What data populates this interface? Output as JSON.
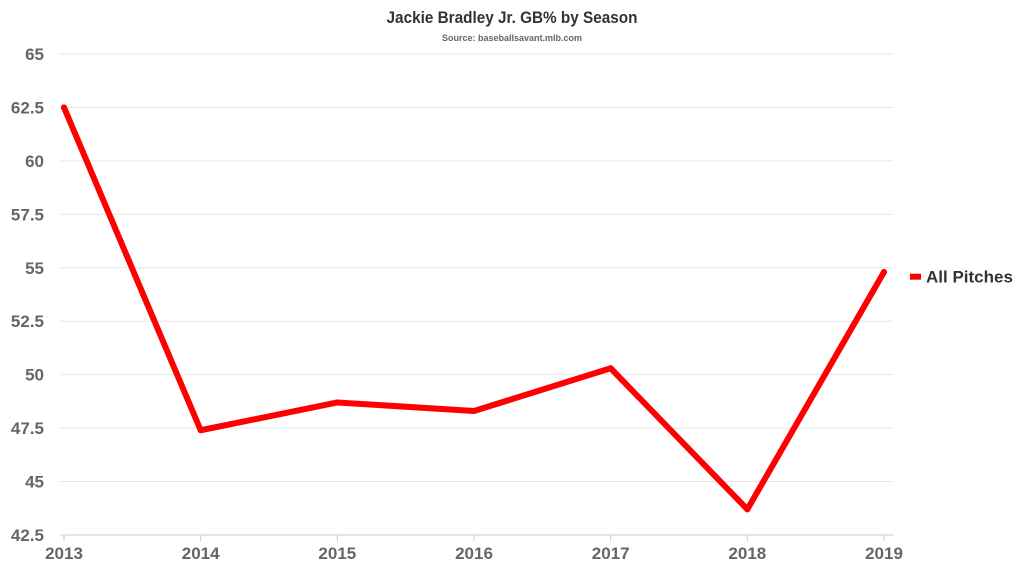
{
  "chart_data": {
    "type": "line",
    "title": "Jackie Bradley Jr. GB% by Season",
    "subtitle": "Source: baseballsavant.mlb.com",
    "xlabel": "",
    "ylabel": "",
    "categories": [
      "2013",
      "2014",
      "2015",
      "2016",
      "2017",
      "2018",
      "2019"
    ],
    "series": [
      {
        "name": "All Pitches",
        "color": "#ff0000",
        "values": [
          62.5,
          47.4,
          48.7,
          48.3,
          50.3,
          43.7,
          54.8
        ]
      }
    ],
    "ylim": [
      42.5,
      65
    ],
    "yticks": [
      "42.5",
      "45",
      "47.5",
      "50",
      "52.5",
      "55",
      "57.5",
      "60",
      "62.5",
      "65"
    ],
    "grid": true,
    "legend_position": "right"
  }
}
